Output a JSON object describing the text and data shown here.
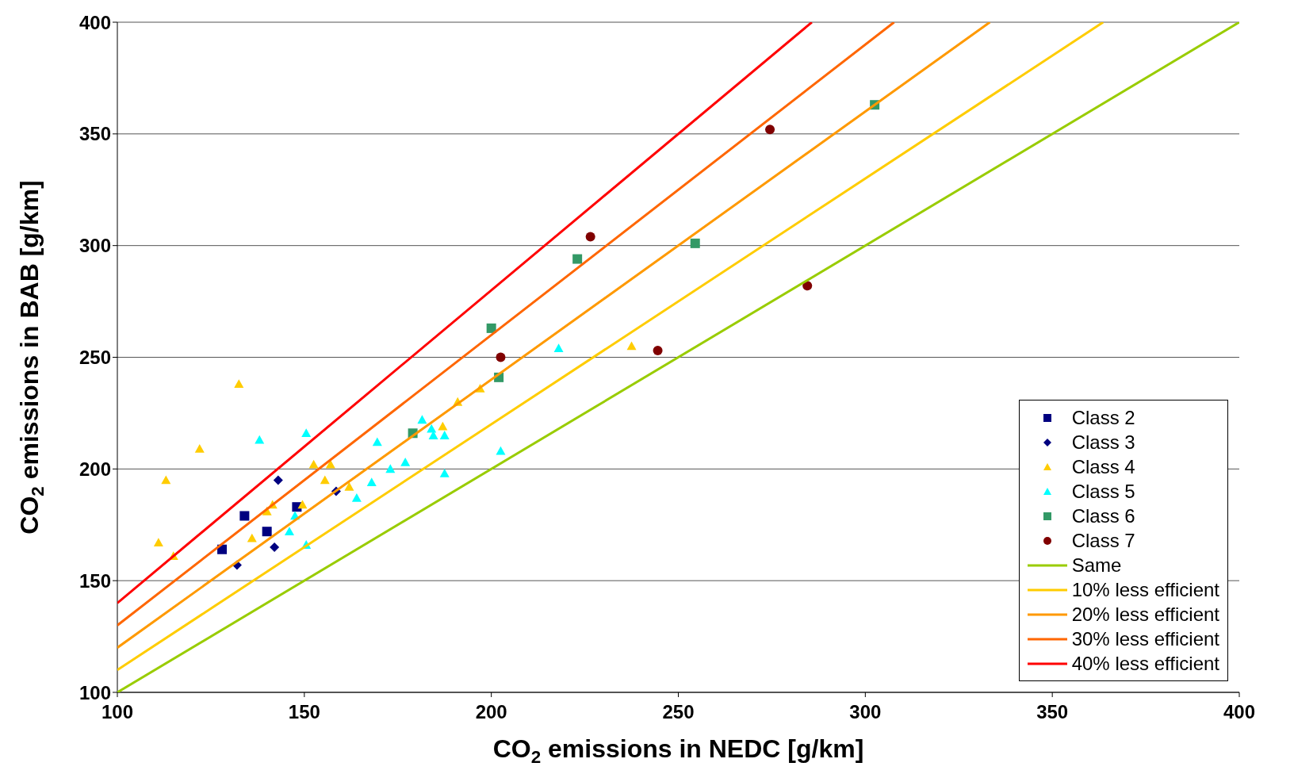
{
  "chart_data": {
    "type": "scatter",
    "xlabel": "CO$_{2}$ emissions in NEDC [g/km]",
    "ylabel": "CO$_{2}$ emissions in BAB [g/km]",
    "xlim": [
      100,
      400
    ],
    "xticks": [
      100,
      150,
      200,
      250,
      300,
      350,
      400
    ],
    "ylim": [
      100,
      400
    ],
    "yticks": [
      100,
      150,
      200,
      250,
      300,
      350,
      400
    ],
    "grid": "y",
    "legend": "bottom right",
    "series": [
      {
        "name": "Class 2",
        "type": "scatter",
        "marker": "square",
        "color": "#000080",
        "x": [
          128,
          134,
          140,
          148
        ],
        "values": [
          164,
          179,
          172,
          183
        ]
      },
      {
        "name": "Class 3",
        "type": "scatter",
        "marker": "diamond",
        "color": "#000080",
        "x": [
          132,
          143,
          142,
          158.5
        ],
        "values": [
          157,
          195,
          165,
          190
        ]
      },
      {
        "name": "Class 4",
        "type": "scatter",
        "marker": "triangle",
        "color": "#ffcc00",
        "x": [
          111,
          113,
          115,
          122,
          132.5,
          136,
          140,
          141.5,
          149.5,
          152.5,
          155.5,
          157,
          162,
          187,
          191,
          197,
          237.5
        ],
        "values": [
          167,
          195,
          161,
          209,
          238,
          169,
          181,
          184,
          184,
          202,
          195,
          202,
          192,
          219,
          230,
          236,
          255
        ]
      },
      {
        "name": "Class 5",
        "type": "scatter",
        "marker": "triangle",
        "color": "#00ffff",
        "x": [
          138,
          150.5,
          146,
          147.5,
          150.5,
          164,
          168,
          169.5,
          173,
          177,
          181.5,
          184,
          184.5,
          187.5,
          187.5,
          202.5,
          218
        ],
        "values": [
          213,
          216,
          172,
          179,
          166,
          187,
          194,
          212,
          200,
          203,
          222,
          218,
          215,
          215,
          198,
          208,
          254
        ]
      },
      {
        "name": "Class 6",
        "type": "scatter",
        "marker": "square",
        "color": "#339966",
        "x": [
          179,
          200,
          202,
          223,
          254.5,
          302.5
        ],
        "values": [
          216,
          263,
          241,
          294,
          301,
          363
        ]
      },
      {
        "name": "Class 7",
        "type": "scatter",
        "marker": "circle",
        "color": "#800000",
        "x": [
          202.5,
          226.5,
          244.5,
          274.5,
          284.5
        ],
        "values": [
          250,
          304,
          253,
          352,
          282
        ]
      },
      {
        "name": "Same",
        "type": "line",
        "marker": "none",
        "color": "#99cc00",
        "x": [
          100,
          400
        ],
        "values": [
          100,
          400
        ]
      },
      {
        "name": "10% less efficient",
        "type": "line",
        "marker": "none",
        "color": "#ffcc00",
        "x": [
          100,
          363.6
        ],
        "values": [
          110,
          400
        ]
      },
      {
        "name": "20% less efficient",
        "type": "line",
        "marker": "none",
        "color": "#ff9900",
        "x": [
          100,
          333.3
        ],
        "values": [
          120,
          400
        ]
      },
      {
        "name": "30% less efficient",
        "type": "line",
        "marker": "none",
        "color": "#ff6600",
        "x": [
          100,
          307.7
        ],
        "values": [
          130,
          400
        ]
      },
      {
        "name": "40% less efficient",
        "type": "line",
        "marker": "none",
        "color": "#ff0000",
        "x": [
          100,
          285.7
        ],
        "values": [
          140,
          400
        ]
      }
    ]
  }
}
